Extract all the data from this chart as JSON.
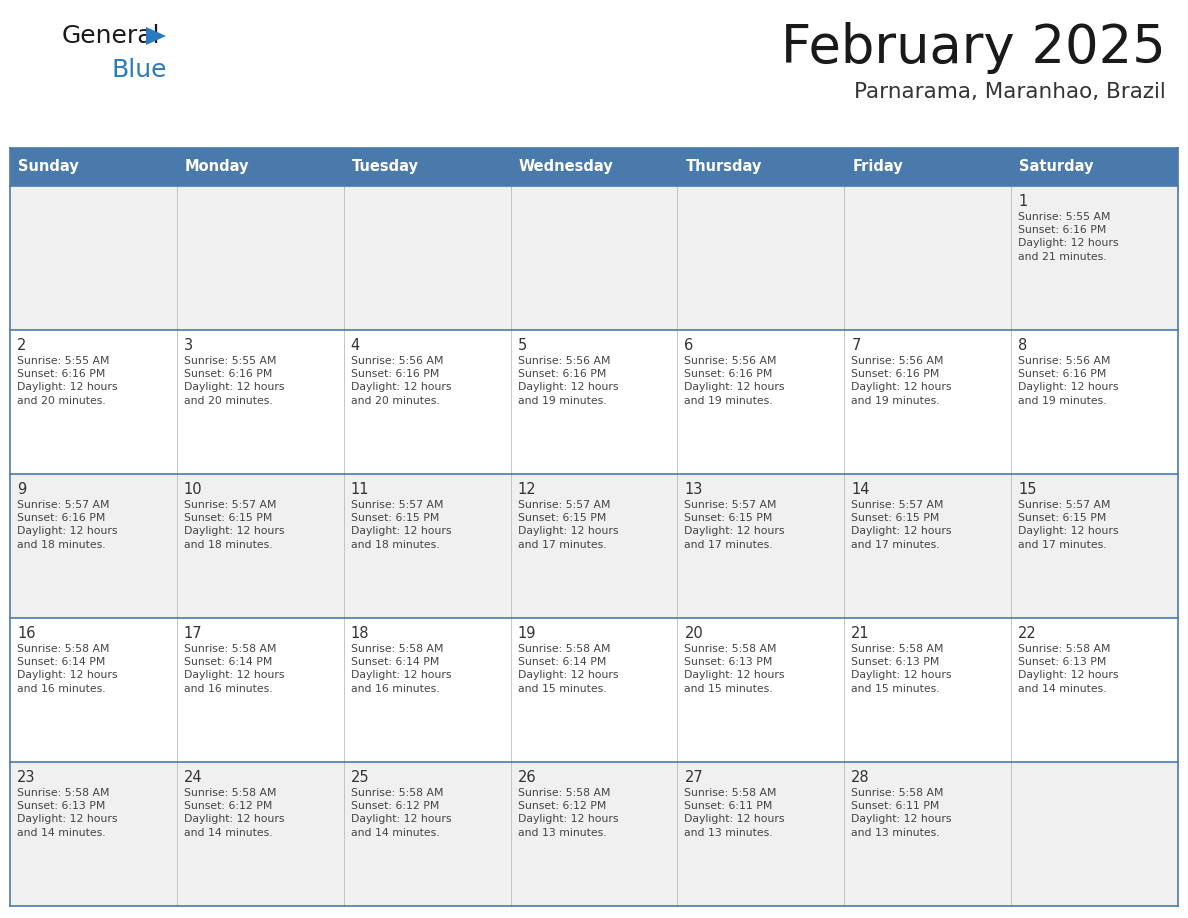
{
  "title": "February 2025",
  "subtitle": "Parnarama, Maranhao, Brazil",
  "header_bg": "#4a7aac",
  "header_text_color": "#ffffff",
  "day_names": [
    "Sunday",
    "Monday",
    "Tuesday",
    "Wednesday",
    "Thursday",
    "Friday",
    "Saturday"
  ],
  "title_color": "#1a1a1a",
  "subtitle_color": "#333333",
  "cell_bg_odd": "#f0f0f0",
  "cell_bg_even": "#ffffff",
  "cell_border_color": "#4a7aac",
  "col_border_color": "#bbbbbb",
  "day_num_color": "#333333",
  "info_text_color": "#444444",
  "logo_general_color": "#1a1a1a",
  "logo_blue_color": "#2a7abf",
  "weeks": [
    [
      {
        "day": null,
        "sunrise": null,
        "sunset": null,
        "daylight": null
      },
      {
        "day": null,
        "sunrise": null,
        "sunset": null,
        "daylight": null
      },
      {
        "day": null,
        "sunrise": null,
        "sunset": null,
        "daylight": null
      },
      {
        "day": null,
        "sunrise": null,
        "sunset": null,
        "daylight": null
      },
      {
        "day": null,
        "sunrise": null,
        "sunset": null,
        "daylight": null
      },
      {
        "day": null,
        "sunrise": null,
        "sunset": null,
        "daylight": null
      },
      {
        "day": 1,
        "sunrise": "5:55 AM",
        "sunset": "6:16 PM",
        "daylight": "12 hours\nand 21 minutes."
      }
    ],
    [
      {
        "day": 2,
        "sunrise": "5:55 AM",
        "sunset": "6:16 PM",
        "daylight": "12 hours\nand 20 minutes."
      },
      {
        "day": 3,
        "sunrise": "5:55 AM",
        "sunset": "6:16 PM",
        "daylight": "12 hours\nand 20 minutes."
      },
      {
        "day": 4,
        "sunrise": "5:56 AM",
        "sunset": "6:16 PM",
        "daylight": "12 hours\nand 20 minutes."
      },
      {
        "day": 5,
        "sunrise": "5:56 AM",
        "sunset": "6:16 PM",
        "daylight": "12 hours\nand 19 minutes."
      },
      {
        "day": 6,
        "sunrise": "5:56 AM",
        "sunset": "6:16 PM",
        "daylight": "12 hours\nand 19 minutes."
      },
      {
        "day": 7,
        "sunrise": "5:56 AM",
        "sunset": "6:16 PM",
        "daylight": "12 hours\nand 19 minutes."
      },
      {
        "day": 8,
        "sunrise": "5:56 AM",
        "sunset": "6:16 PM",
        "daylight": "12 hours\nand 19 minutes."
      }
    ],
    [
      {
        "day": 9,
        "sunrise": "5:57 AM",
        "sunset": "6:16 PM",
        "daylight": "12 hours\nand 18 minutes."
      },
      {
        "day": 10,
        "sunrise": "5:57 AM",
        "sunset": "6:15 PM",
        "daylight": "12 hours\nand 18 minutes."
      },
      {
        "day": 11,
        "sunrise": "5:57 AM",
        "sunset": "6:15 PM",
        "daylight": "12 hours\nand 18 minutes."
      },
      {
        "day": 12,
        "sunrise": "5:57 AM",
        "sunset": "6:15 PM",
        "daylight": "12 hours\nand 17 minutes."
      },
      {
        "day": 13,
        "sunrise": "5:57 AM",
        "sunset": "6:15 PM",
        "daylight": "12 hours\nand 17 minutes."
      },
      {
        "day": 14,
        "sunrise": "5:57 AM",
        "sunset": "6:15 PM",
        "daylight": "12 hours\nand 17 minutes."
      },
      {
        "day": 15,
        "sunrise": "5:57 AM",
        "sunset": "6:15 PM",
        "daylight": "12 hours\nand 17 minutes."
      }
    ],
    [
      {
        "day": 16,
        "sunrise": "5:58 AM",
        "sunset": "6:14 PM",
        "daylight": "12 hours\nand 16 minutes."
      },
      {
        "day": 17,
        "sunrise": "5:58 AM",
        "sunset": "6:14 PM",
        "daylight": "12 hours\nand 16 minutes."
      },
      {
        "day": 18,
        "sunrise": "5:58 AM",
        "sunset": "6:14 PM",
        "daylight": "12 hours\nand 16 minutes."
      },
      {
        "day": 19,
        "sunrise": "5:58 AM",
        "sunset": "6:14 PM",
        "daylight": "12 hours\nand 15 minutes."
      },
      {
        "day": 20,
        "sunrise": "5:58 AM",
        "sunset": "6:13 PM",
        "daylight": "12 hours\nand 15 minutes."
      },
      {
        "day": 21,
        "sunrise": "5:58 AM",
        "sunset": "6:13 PM",
        "daylight": "12 hours\nand 15 minutes."
      },
      {
        "day": 22,
        "sunrise": "5:58 AM",
        "sunset": "6:13 PM",
        "daylight": "12 hours\nand 14 minutes."
      }
    ],
    [
      {
        "day": 23,
        "sunrise": "5:58 AM",
        "sunset": "6:13 PM",
        "daylight": "12 hours\nand 14 minutes."
      },
      {
        "day": 24,
        "sunrise": "5:58 AM",
        "sunset": "6:12 PM",
        "daylight": "12 hours\nand 14 minutes."
      },
      {
        "day": 25,
        "sunrise": "5:58 AM",
        "sunset": "6:12 PM",
        "daylight": "12 hours\nand 14 minutes."
      },
      {
        "day": 26,
        "sunrise": "5:58 AM",
        "sunset": "6:12 PM",
        "daylight": "12 hours\nand 13 minutes."
      },
      {
        "day": 27,
        "sunrise": "5:58 AM",
        "sunset": "6:11 PM",
        "daylight": "12 hours\nand 13 minutes."
      },
      {
        "day": 28,
        "sunrise": "5:58 AM",
        "sunset": "6:11 PM",
        "daylight": "12 hours\nand 13 minutes."
      },
      {
        "day": null,
        "sunrise": null,
        "sunset": null,
        "daylight": null
      }
    ]
  ]
}
